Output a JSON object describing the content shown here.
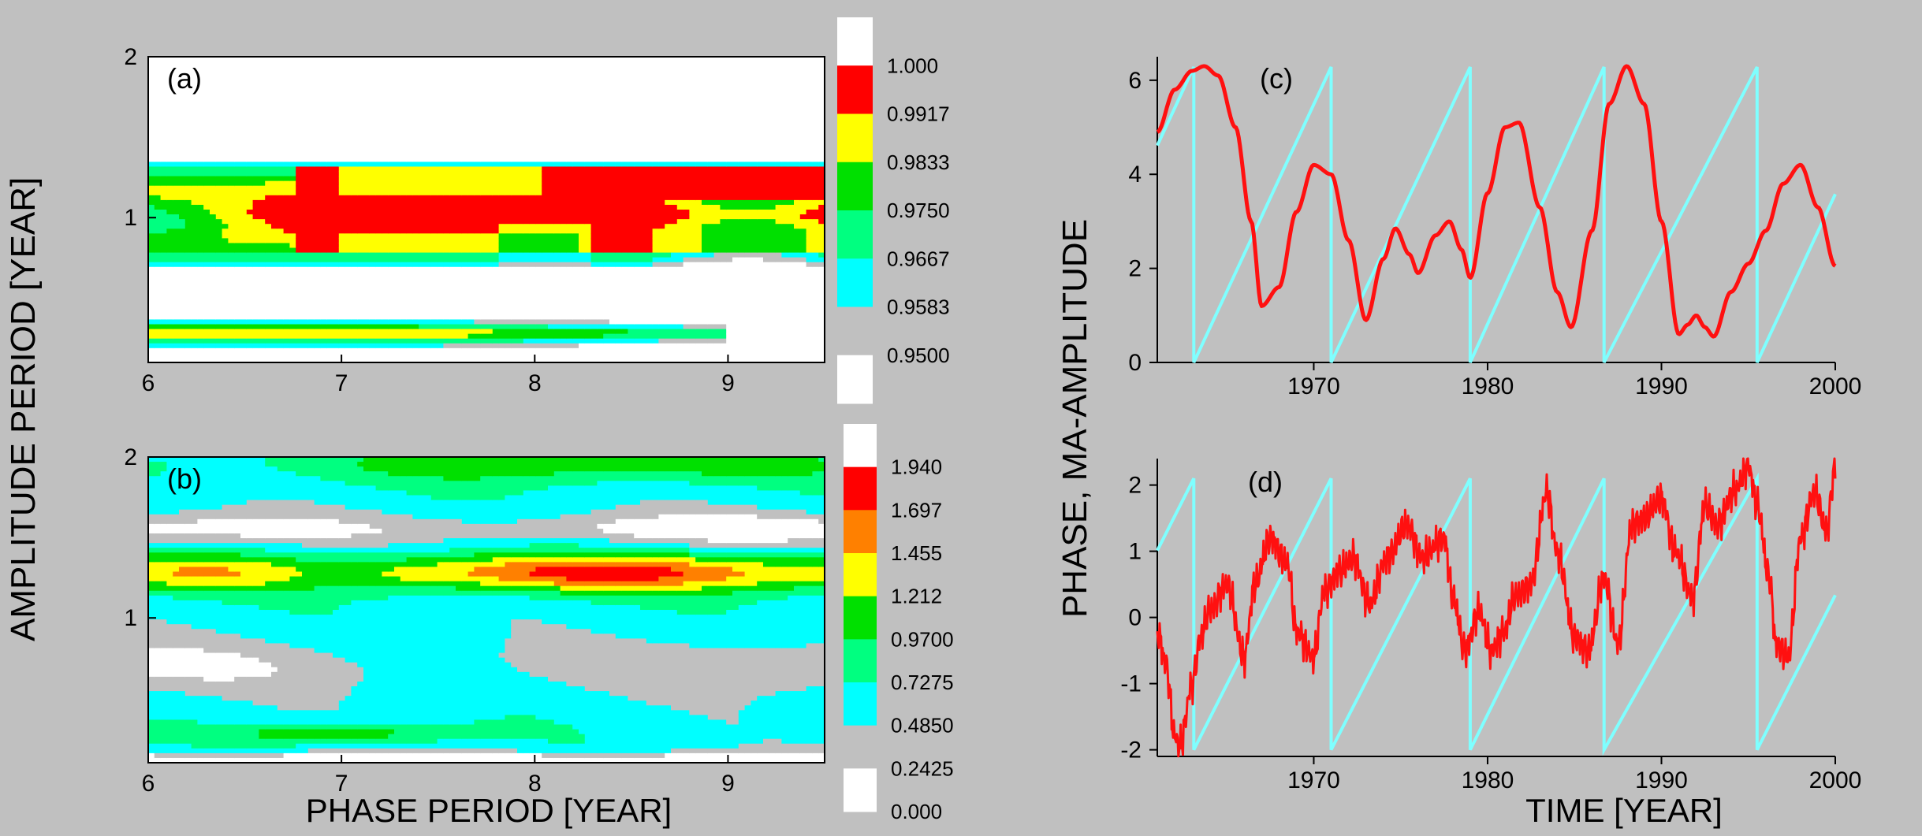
{
  "labels": {
    "left_ylabel": "AMPLITUDE PERIOD [YEAR]",
    "left_xlabel": "PHASE PERIOD [YEAR]",
    "right_ylabel": "PHASE, MA-AMPLITUDE",
    "right_xlabel": "TIME [YEAR]"
  },
  "colors": {
    "background": "#c0c0c0",
    "red": "#ff0000",
    "orange": "#ff8000",
    "yellow": "#ffff00",
    "green": "#00e000",
    "light_green": "#00ff80",
    "cyan": "#00ffff",
    "gray": "#c0c0c0",
    "white": "#ffffff",
    "line_red": "#ff1010",
    "line_cyan": "#7fffff"
  },
  "chart_data": [
    {
      "panel": "(a)",
      "type": "heatmap",
      "x_ticks": [
        "6",
        "7",
        "8",
        "9"
      ],
      "y_ticks": [
        "1",
        "2"
      ],
      "xlim": [
        6,
        9.5
      ],
      "ylim": [
        0.1,
        2
      ],
      "colorbar_levels": [
        "1.000",
        "0.9917",
        "0.9833",
        "0.9750",
        "0.9667",
        "0.9583",
        "0.9500"
      ],
      "bands": [
        {
          "name": "main",
          "center": 1.02,
          "halfwidth": 0.32,
          "hot_from_x": 6.75,
          "peak": 1.0
        },
        {
          "name": "secondary",
          "center": 0.28,
          "halfwidth": 0.09,
          "peak": 0.99
        }
      ]
    },
    {
      "panel": "(b)",
      "type": "heatmap",
      "x_ticks": [
        "6",
        "7",
        "8",
        "9"
      ],
      "y_ticks": [
        "1",
        "2"
      ],
      "xlim": [
        6,
        9.5
      ],
      "ylim": [
        0.1,
        2
      ],
      "colorbar_levels": [
        "1.940",
        "1.697",
        "1.455",
        "1.212",
        "0.9700",
        "0.7275",
        "0.4850",
        "0.2425",
        "0.000"
      ],
      "bands": [
        {
          "name": "main",
          "center": 1.28,
          "peak": 1.94,
          "peak_x": 8.3
        },
        {
          "name": "lower",
          "center": 0.28,
          "peak": 1.5,
          "peak_x": 7.0
        },
        {
          "name": "top",
          "center": 2.0,
          "peak": 1.3,
          "peak_x": 6.8
        }
      ]
    },
    {
      "panel": "(c)",
      "type": "line",
      "xlim": [
        1961,
        2000
      ],
      "ylim": [
        0,
        6.5
      ],
      "x_ticks": [
        "1970",
        "1980",
        "1990",
        "2000"
      ],
      "y_ticks": [
        "0",
        "2",
        "4",
        "6"
      ],
      "series": [
        {
          "color": "red",
          "x": [
            1961,
            1962,
            1963,
            1963.7,
            1964.5,
            1965.5,
            1966.4,
            1967,
            1968,
            1969,
            1970,
            1971,
            1972,
            1973,
            1974,
            1974.7,
            1975.5,
            1976,
            1977,
            1977.8,
            1978.5,
            1979,
            1980,
            1981,
            1981.8,
            1983,
            1984,
            1984.8,
            1986,
            1987,
            1988,
            1989,
            1990,
            1991,
            1991.5,
            1992,
            1992.5,
            1993,
            1994,
            1995,
            1996,
            1997,
            1998,
            1999,
            2000
          ],
          "y": [
            4.9,
            5.8,
            6.2,
            6.3,
            6.1,
            5.0,
            3.0,
            1.2,
            1.6,
            3.2,
            4.2,
            4.0,
            2.6,
            0.9,
            2.2,
            2.85,
            2.3,
            1.9,
            2.7,
            3.0,
            2.4,
            1.8,
            3.6,
            5.0,
            5.1,
            3.3,
            1.5,
            0.75,
            2.8,
            5.5,
            6.3,
            5.5,
            3.0,
            0.6,
            0.8,
            1.0,
            0.75,
            0.55,
            1.5,
            2.1,
            2.8,
            3.8,
            4.2,
            3.3,
            2.05
          ]
        },
        {
          "color": "cyan",
          "sawtooth_resets": [
            1963.1,
            1971.0,
            1979.0,
            1986.7,
            1995.5
          ],
          "resets_to": 0,
          "peak": 6.283
        }
      ]
    },
    {
      "panel": "(d)",
      "type": "line",
      "xlim": [
        1961,
        2000
      ],
      "ylim": [
        -2.1,
        2.4
      ],
      "x_ticks": [
        "1970",
        "1980",
        "1990",
        "2000"
      ],
      "y_ticks": [
        "-2",
        "-1",
        "0",
        "1",
        "2"
      ],
      "series": [
        {
          "color": "red",
          "noisy": true,
          "x": [
            1961,
            1961.5,
            1962,
            1962.3,
            1963,
            1963.5,
            1964,
            1965,
            1966,
            1966.6,
            1967.5,
            1968.5,
            1969,
            1970,
            1970.6,
            1971.5,
            1972.3,
            1973.2,
            1974.2,
            1975.4,
            1976.2,
            1977.5,
            1978,
            1978.7,
            1979.5,
            1980.2,
            1981,
            1981.5,
            1982.5,
            1983.4,
            1984,
            1985,
            1985.8,
            1986.7,
            1987.5,
            1988.3,
            1989,
            1990,
            1990.8,
            1991.8,
            1992.5,
            1993.2,
            1994.2,
            1995,
            1995.5,
            1996.2,
            1996.6,
            1997.3,
            1998,
            1998.8,
            1999.5,
            2000
          ],
          "y": [
            -0.2,
            -0.7,
            -1.8,
            -1.95,
            -1.0,
            -0.3,
            0.1,
            0.5,
            -0.6,
            0.5,
            1.2,
            0.8,
            -0.2,
            -0.6,
            0.4,
            0.7,
            0.9,
            0.2,
            0.9,
            1.4,
            0.9,
            1.2,
            0.3,
            -0.5,
            0.1,
            -0.5,
            -0.2,
            0.3,
            0.5,
            1.9,
            1.0,
            -0.3,
            -0.5,
            0.6,
            -0.4,
            1.4,
            1.5,
            1.8,
            1.0,
            0.3,
            1.7,
            1.4,
            1.9,
            2.3,
            1.7,
            0.6,
            -0.4,
            -0.6,
            1.2,
            1.9,
            1.3,
            2.3
          ]
        },
        {
          "color": "cyan",
          "sawtooth_resets": [
            1963.1,
            1971.0,
            1979.0,
            1986.7,
            1995.5
          ],
          "resets_to": -2,
          "peak": 2.1
        }
      ]
    }
  ]
}
